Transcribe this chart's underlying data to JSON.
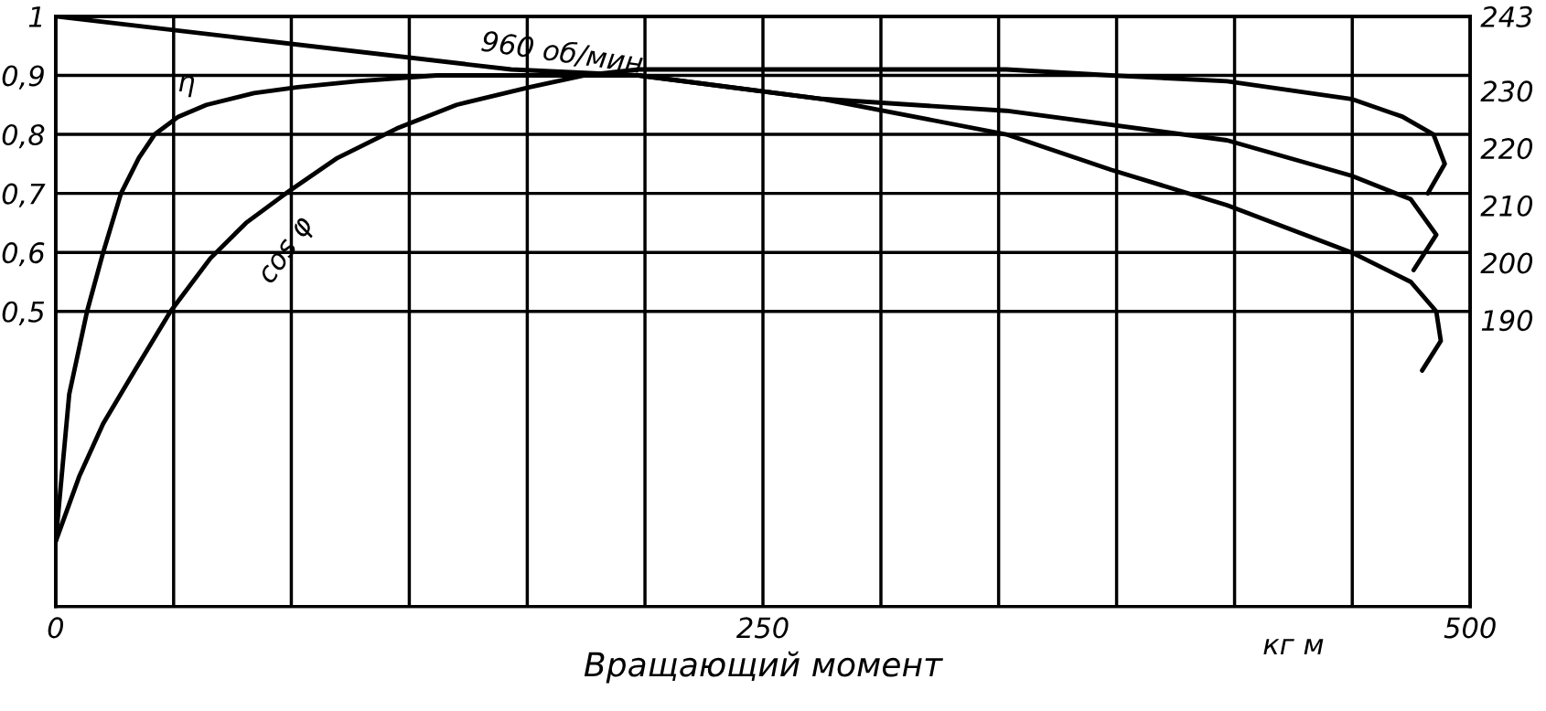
{
  "chart_data": {
    "type": "line",
    "xlabel": "Вращающий момент",
    "xlim": [
      0,
      500
    ],
    "xticks": [
      0,
      {
        "value": 41.7,
        "label": null
      },
      {
        "value": 83.3,
        "label": null
      },
      {
        "value": 125,
        "label": null
      },
      {
        "value": 166.7,
        "label": null
      },
      {
        "value": 208.3,
        "label": null
      },
      250,
      {
        "value": 291.7,
        "label": null
      },
      {
        "value": 333.3,
        "label": null
      },
      {
        "value": 375,
        "label": null
      },
      {
        "value": 416.7,
        "label": null
      },
      {
        "value": 458.3,
        "label": null
      },
      500
    ],
    "ylim": [
      0,
      1
    ],
    "yticks": [
      {
        "value": 0.5,
        "label": "0,5"
      },
      {
        "value": 0.6,
        "label": "0,6"
      },
      {
        "value": 0.7,
        "label": "0,7"
      },
      {
        "value": 0.8,
        "label": "0,8"
      },
      {
        "value": 0.9,
        "label": "0,9"
      },
      1
    ],
    "y2lim": [
      140,
      243
    ],
    "y2ticks": [
      190,
      200,
      210,
      220,
      230,
      243
    ],
    "grid": true,
    "legend": false,
    "marker": "none",
    "line_style": "solid",
    "annotations": [
      "кг м"
    ],
    "series": [
      {
        "name": "η",
        "color": "#000000",
        "x": [
          0,
          4.8,
          11.1,
          16.8,
          23.1,
          29.4,
          35,
          43.4,
          53.3,
          70.1,
          85.6,
          106.6,
          134.7,
          206,
          271,
          336,
          414,
          458,
          479,
          488,
          480
        ],
        "values": [
          0.11,
          0.36,
          0.5,
          0.6,
          0.7,
          0.76,
          0.8,
          0.83,
          0.85,
          0.87,
          0.88,
          0.89,
          0.9,
          0.9,
          0.86,
          0.84,
          0.79,
          0.73,
          0.69,
          0.63,
          0.57
        ]
      },
      {
        "name": "cos φ",
        "color": "#000000",
        "x": [
          0,
          8.3,
          16.8,
          28,
          40.6,
          54.7,
          67.3,
          81.4,
          99.6,
          120.6,
          141.7,
          167.6,
          187,
          206,
          247,
          289,
          336,
          373,
          414,
          458,
          476,
          487,
          491,
          485
        ],
        "values": [
          0.11,
          0.22,
          0.31,
          0.4,
          0.5,
          0.59,
          0.65,
          0.7,
          0.76,
          0.81,
          0.85,
          0.88,
          0.9,
          0.91,
          0.91,
          0.91,
          0.91,
          0.9,
          0.89,
          0.86,
          0.83,
          0.8,
          0.75,
          0.7
        ]
      },
      {
        "name": "960 об/мин",
        "color": "#000000",
        "x": [
          0,
          161,
          206,
          271,
          336,
          373,
          414,
          458,
          479,
          488,
          489.6,
          483
        ],
        "values": [
          1,
          0.91,
          0.9,
          0.86,
          0.8,
          0.74,
          0.68,
          0.6,
          0.55,
          0.5,
          0.45,
          0.4
        ]
      }
    ]
  }
}
